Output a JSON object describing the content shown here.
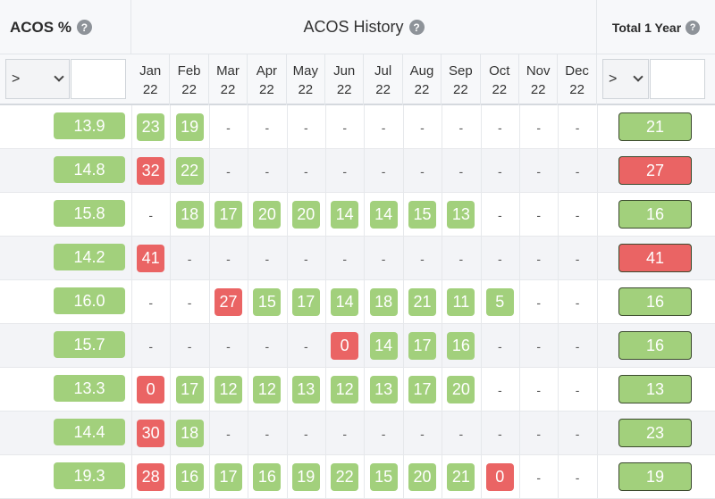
{
  "colors": {
    "green": "#a2d07c",
    "red": "#ea6464",
    "header_bg": "#f7f8fa",
    "alt_row": "#f3f4f7"
  },
  "header": {
    "acos_title": "ACOS %",
    "history_title": "ACOS History",
    "total_title": "Total 1 Year",
    "help_icon": "?"
  },
  "filters": {
    "acos": {
      "operator": ">",
      "value": ""
    },
    "total": {
      "operator": ">",
      "value": ""
    }
  },
  "months": [
    [
      "Jan",
      "22"
    ],
    [
      "Feb",
      "22"
    ],
    [
      "Mar",
      "22"
    ],
    [
      "Apr",
      "22"
    ],
    [
      "May",
      "22"
    ],
    [
      "Jun",
      "22"
    ],
    [
      "Jul",
      "22"
    ],
    [
      "Aug",
      "22"
    ],
    [
      "Sep",
      "22"
    ],
    [
      "Oct",
      "22"
    ],
    [
      "Nov",
      "22"
    ],
    [
      "Dec",
      "22"
    ]
  ],
  "rows": [
    {
      "acos": "13.9",
      "history": [
        [
          "23",
          "g"
        ],
        [
          "19",
          "g"
        ],
        null,
        null,
        null,
        null,
        null,
        null,
        null,
        null,
        null,
        null
      ],
      "total": [
        "21",
        "g"
      ]
    },
    {
      "acos": "14.8",
      "history": [
        [
          "32",
          "r"
        ],
        [
          "22",
          "g"
        ],
        null,
        null,
        null,
        null,
        null,
        null,
        null,
        null,
        null,
        null
      ],
      "total": [
        "27",
        "r"
      ]
    },
    {
      "acos": "15.8",
      "history": [
        null,
        [
          "18",
          "g"
        ],
        [
          "17",
          "g"
        ],
        [
          "20",
          "g"
        ],
        [
          "20",
          "g"
        ],
        [
          "14",
          "g"
        ],
        [
          "14",
          "g"
        ],
        [
          "15",
          "g"
        ],
        [
          "13",
          "g"
        ],
        null,
        null,
        null
      ],
      "total": [
        "16",
        "g"
      ]
    },
    {
      "acos": "14.2",
      "history": [
        [
          "41",
          "r"
        ],
        null,
        null,
        null,
        null,
        null,
        null,
        null,
        null,
        null,
        null,
        null
      ],
      "total": [
        "41",
        "r"
      ]
    },
    {
      "acos": "16.0",
      "history": [
        null,
        null,
        [
          "27",
          "r"
        ],
        [
          "15",
          "g"
        ],
        [
          "17",
          "g"
        ],
        [
          "14",
          "g"
        ],
        [
          "18",
          "g"
        ],
        [
          "21",
          "g"
        ],
        [
          "11",
          "g"
        ],
        [
          "5",
          "g"
        ],
        null,
        null
      ],
      "total": [
        "16",
        "g"
      ]
    },
    {
      "acos": "15.7",
      "history": [
        null,
        null,
        null,
        null,
        null,
        [
          "0",
          "r"
        ],
        [
          "14",
          "g"
        ],
        [
          "17",
          "g"
        ],
        [
          "16",
          "g"
        ],
        null,
        null,
        null
      ],
      "total": [
        "16",
        "g"
      ]
    },
    {
      "acos": "13.3",
      "history": [
        [
          "0",
          "r"
        ],
        [
          "17",
          "g"
        ],
        [
          "12",
          "g"
        ],
        [
          "12",
          "g"
        ],
        [
          "13",
          "g"
        ],
        [
          "12",
          "g"
        ],
        [
          "13",
          "g"
        ],
        [
          "17",
          "g"
        ],
        [
          "20",
          "g"
        ],
        null,
        null,
        null
      ],
      "total": [
        "13",
        "g"
      ]
    },
    {
      "acos": "14.4",
      "history": [
        [
          "30",
          "r"
        ],
        [
          "18",
          "g"
        ],
        null,
        null,
        null,
        null,
        null,
        null,
        null,
        null,
        null,
        null
      ],
      "total": [
        "23",
        "g"
      ]
    },
    {
      "acos": "19.3",
      "history": [
        [
          "28",
          "r"
        ],
        [
          "16",
          "g"
        ],
        [
          "17",
          "g"
        ],
        [
          "16",
          "g"
        ],
        [
          "19",
          "g"
        ],
        [
          "22",
          "g"
        ],
        [
          "15",
          "g"
        ],
        [
          "20",
          "g"
        ],
        [
          "21",
          "g"
        ],
        [
          "0",
          "r"
        ],
        null,
        null
      ],
      "total": [
        "19",
        "g"
      ]
    }
  ],
  "empty_cell": "-"
}
